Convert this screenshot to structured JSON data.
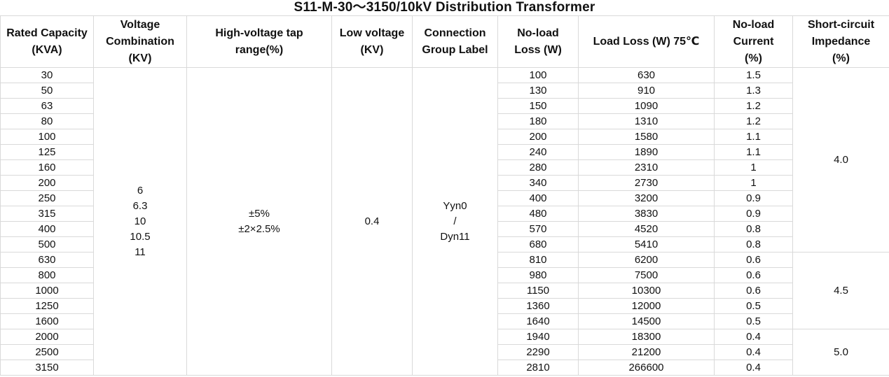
{
  "title": "S11-M-30～3150/10kV Distribution Transformer",
  "headers": [
    "Rated Capacity\n(KVA)",
    "Voltage\nCombination\n(KV)",
    "High-voltage tap\nrange(%)",
    "Low voltage\n(KV)",
    "Connection\nGroup Label",
    "No-load\nLoss  (W)",
    "Load Loss  (W)  75℃",
    "No-load\nCurrent\n(%)",
    "Short-circuit\nImpedance\n(%)"
  ],
  "merged": {
    "voltage_combination": "6\n6.3\n10\n10.5\n11",
    "hv_tap_range": "±5%\n±2×2.5%",
    "low_voltage": "0.4",
    "connection_group": "Yyn0\n/\nDyn11",
    "impedance_groups": [
      "4.0",
      "4.5",
      "5.0"
    ]
  },
  "rows": [
    {
      "capacity": "30",
      "noload_loss": "100",
      "load_loss": "630",
      "noload_current": "1.5"
    },
    {
      "capacity": "50",
      "noload_loss": "130",
      "load_loss": "910",
      "noload_current": "1.3"
    },
    {
      "capacity": "63",
      "noload_loss": "150",
      "load_loss": "1090",
      "noload_current": "1.2"
    },
    {
      "capacity": "80",
      "noload_loss": "180",
      "load_loss": "1310",
      "noload_current": "1.2"
    },
    {
      "capacity": "100",
      "noload_loss": "200",
      "load_loss": "1580",
      "noload_current": "1.1"
    },
    {
      "capacity": "125",
      "noload_loss": "240",
      "load_loss": "1890",
      "noload_current": "1.1"
    },
    {
      "capacity": "160",
      "noload_loss": "280",
      "load_loss": "2310",
      "noload_current": "1"
    },
    {
      "capacity": "200",
      "noload_loss": "340",
      "load_loss": "2730",
      "noload_current": "1"
    },
    {
      "capacity": "250",
      "noload_loss": "400",
      "load_loss": "3200",
      "noload_current": "0.9"
    },
    {
      "capacity": "315",
      "noload_loss": "480",
      "load_loss": "3830",
      "noload_current": "0.9"
    },
    {
      "capacity": "400",
      "noload_loss": "570",
      "load_loss": "4520",
      "noload_current": "0.8"
    },
    {
      "capacity": "500",
      "noload_loss": "680",
      "load_loss": "5410",
      "noload_current": "0.8"
    },
    {
      "capacity": "630",
      "noload_loss": "810",
      "load_loss": "6200",
      "noload_current": "0.6"
    },
    {
      "capacity": "800",
      "noload_loss": "980",
      "load_loss": "7500",
      "noload_current": "0.6"
    },
    {
      "capacity": "1000",
      "noload_loss": "1150",
      "load_loss": "10300",
      "noload_current": "0.6"
    },
    {
      "capacity": "1250",
      "noload_loss": "1360",
      "load_loss": "12000",
      "noload_current": "0.5"
    },
    {
      "capacity": "1600",
      "noload_loss": "1640",
      "load_loss": "14500",
      "noload_current": "0.5"
    },
    {
      "capacity": "2000",
      "noload_loss": "1940",
      "load_loss": "18300",
      "noload_current": "0.4"
    },
    {
      "capacity": "2500",
      "noload_loss": "2290",
      "load_loss": "21200",
      "noload_current": "0.4"
    },
    {
      "capacity": "3150",
      "noload_loss": "2810",
      "load_loss": "266600",
      "noload_current": "0.4"
    }
  ]
}
